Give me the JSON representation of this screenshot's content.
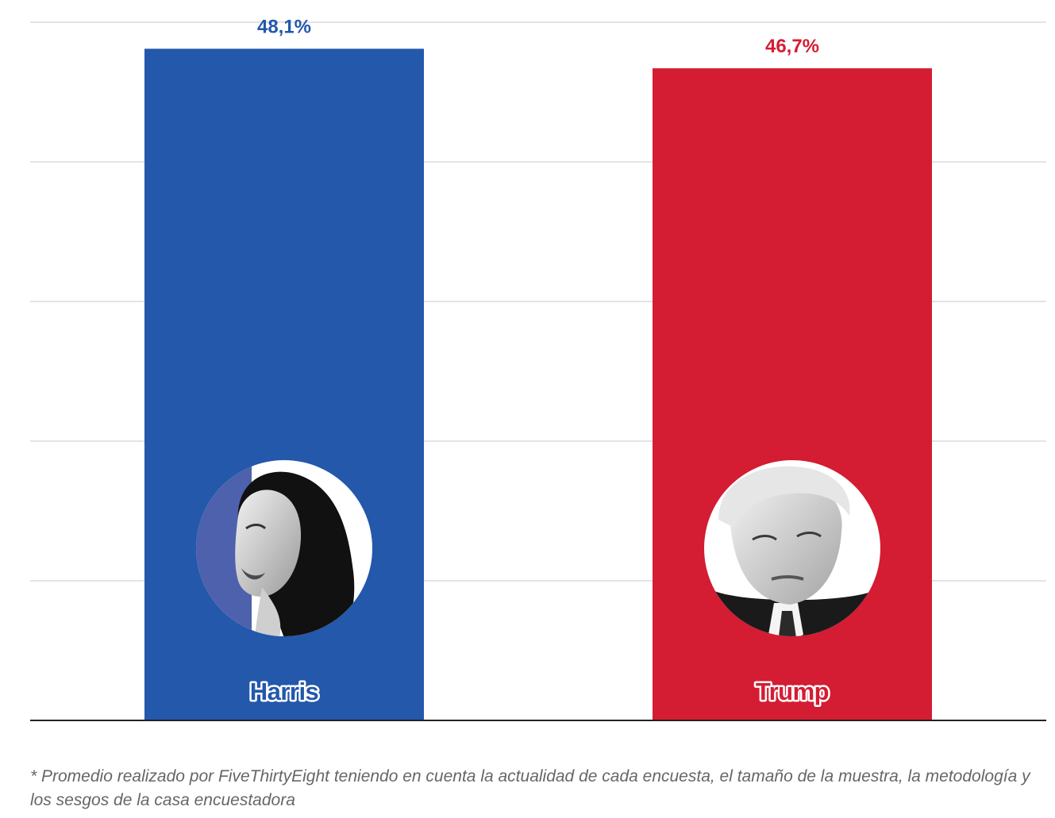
{
  "chart_data": {
    "type": "bar",
    "categories": [
      "Harris",
      "Trump"
    ],
    "values": [
      48.1,
      46.7
    ],
    "value_labels": [
      "48,1%",
      "46,7%"
    ],
    "colors": [
      "#2358ab",
      "#d41c32"
    ],
    "portraits": [
      "kamala-harris-portrait",
      "donald-trump-portrait"
    ],
    "ylim": [
      0,
      50
    ],
    "gridlines": [
      10,
      20,
      30,
      40,
      50
    ],
    "grid": true,
    "title": "",
    "xlabel": "",
    "ylabel": ""
  },
  "footnote": "* Promedio realizado por FiveThirtyEight teniendo en cuenta la actualidad de cada encuesta, el tamaño de la muestra, la metodología y los sesgos de la casa encuestadora"
}
